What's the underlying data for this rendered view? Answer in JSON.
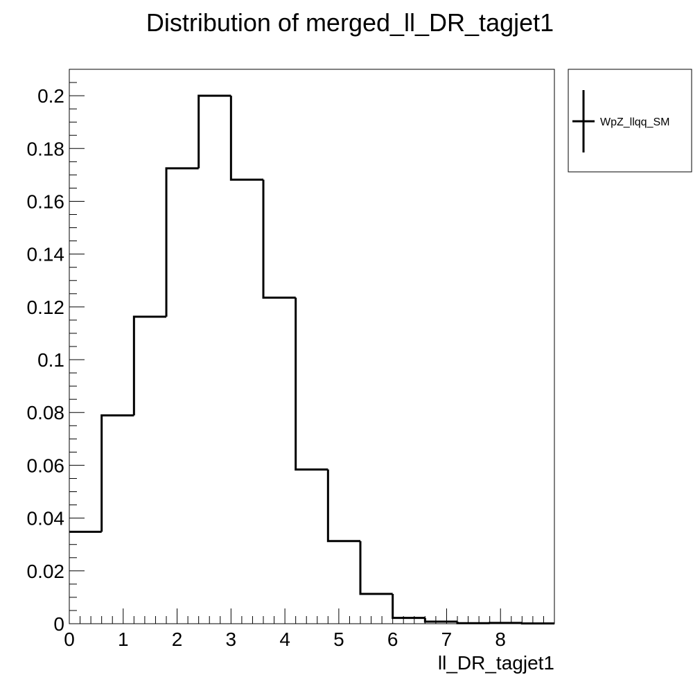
{
  "chart_data": {
    "type": "histogram",
    "title": "Distribution of merged_ll_DR_tagjet1",
    "xlabel": "ll_DR_tagjet1",
    "ylabel": "",
    "xlim": [
      0,
      9
    ],
    "ylim": [
      0,
      0.21
    ],
    "bin_edges": [
      0,
      0.6,
      1.2,
      1.8,
      2.4,
      3.0,
      3.6,
      4.2,
      4.8,
      5.4,
      6.0,
      6.6,
      7.2,
      7.8,
      8.4,
      9.0
    ],
    "series": [
      {
        "name": "WpZ_llqq_SM",
        "color": "#000000",
        "values": [
          0.0348,
          0.0789,
          0.1163,
          0.1725,
          0.2,
          0.1682,
          0.1235,
          0.0584,
          0.0313,
          0.0113,
          0.0022,
          0.0008,
          0.0002,
          0.0003,
          0.0001
        ]
      }
    ],
    "x_ticks": [
      0,
      1,
      2,
      3,
      4,
      5,
      6,
      7,
      8
    ],
    "x_tick_labels": [
      "0",
      "1",
      "2",
      "3",
      "4",
      "5",
      "6",
      "7",
      "8"
    ],
    "y_ticks": [
      0,
      0.02,
      0.04,
      0.06,
      0.08,
      0.1,
      0.12,
      0.14,
      0.16,
      0.18,
      0.2
    ],
    "y_tick_labels": [
      "0",
      "0.02",
      "0.04",
      "0.06",
      "0.08",
      "0.1",
      "0.12",
      "0.14",
      "0.16",
      "0.18",
      "0.2"
    ],
    "legend": {
      "placement": "top-right-outside",
      "entries": [
        "WpZ_llqq_SM"
      ]
    },
    "grid": false
  }
}
